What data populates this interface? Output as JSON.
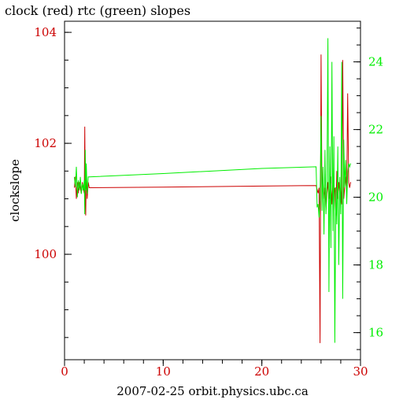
{
  "chart_data": {
    "type": "line",
    "title": "clock (red) rtc (green) slopes",
    "ylabel": "clockslope",
    "xlabel": "2007-02-25 orbit.physics.ubc.ca",
    "xlim": [
      0,
      30
    ],
    "ylim": [
      98.1,
      104.2
    ],
    "y2lim": [
      15.2,
      25.2
    ],
    "x_ticks": [
      0,
      10,
      20,
      30
    ],
    "y_ticks": [
      100,
      102,
      104
    ],
    "y2_ticks": [
      16,
      18,
      20,
      22,
      24
    ],
    "grid": false,
    "colors": {
      "clock": "#cc0000",
      "rtc": "#00ee00",
      "frame": "#000000"
    },
    "series": [
      {
        "name": "clock",
        "axis": "left",
        "x": [
          1.0,
          1.1,
          1.2,
          1.3,
          1.4,
          1.5,
          1.6,
          1.7,
          1.8,
          1.9,
          2.0,
          2.05,
          2.1,
          2.15,
          2.2,
          2.3,
          2.4,
          2.5,
          10,
          20,
          25.5,
          25.7,
          25.8,
          25.9,
          26.0,
          26.1,
          26.2,
          26.3,
          26.4,
          26.5,
          26.6,
          26.7,
          26.8,
          26.9,
          27.0,
          27.1,
          27.2,
          27.3,
          27.4,
          27.5,
          27.6,
          27.7,
          27.8,
          27.9,
          28.0,
          28.1,
          28.2,
          28.3,
          28.4,
          28.5,
          28.6,
          28.7,
          28.8,
          28.9,
          29.0
        ],
        "y": [
          101.2,
          101.4,
          101.0,
          101.3,
          101.1,
          101.3,
          101.2,
          101.1,
          101.3,
          101.2,
          101.1,
          102.3,
          101.0,
          100.7,
          101.5,
          101.0,
          101.3,
          101.2,
          101.21,
          101.23,
          101.24,
          101.1,
          101.2,
          98.4,
          103.6,
          101.0,
          101.3,
          101.0,
          101.2,
          100.8,
          101.1,
          101.3,
          101.0,
          101.2,
          101.4,
          100.9,
          101.3,
          101.1,
          101.2,
          100.7,
          101.5,
          101.0,
          101.3,
          101.1,
          101.2,
          100.9,
          103.5,
          101.0,
          101.2,
          101.4,
          101.1,
          102.9,
          101.3,
          101.2,
          101.3
        ]
      },
      {
        "name": "rtc",
        "axis": "right",
        "x": [
          1.0,
          1.1,
          1.2,
          1.3,
          1.4,
          1.5,
          1.6,
          1.7,
          1.8,
          1.9,
          2.0,
          2.05,
          2.1,
          2.15,
          2.2,
          2.3,
          2.4,
          2.5,
          10,
          20,
          25.5,
          25.6,
          25.7,
          25.8,
          25.9,
          26.0,
          26.1,
          26.2,
          26.3,
          26.4,
          26.5,
          26.6,
          26.7,
          26.8,
          26.9,
          27.0,
          27.1,
          27.2,
          27.3,
          27.4,
          27.5,
          27.6,
          27.7,
          27.8,
          27.9,
          28.0,
          28.1,
          28.2,
          28.3,
          28.4,
          28.5,
          28.6,
          28.7,
          28.8,
          28.9,
          29.0
        ],
        "y": [
          20.6,
          20.3,
          20.9,
          20.0,
          20.5,
          20.2,
          20.6,
          20.1,
          20.4,
          20.2,
          20.5,
          19.5,
          21.4,
          20.2,
          21.0,
          20.1,
          20.6,
          20.6,
          20.7,
          20.85,
          20.9,
          19.7,
          19.8,
          19.4,
          19.9,
          22.4,
          19.6,
          20.9,
          18.9,
          21.4,
          19.5,
          20.4,
          24.7,
          17.2,
          21.5,
          18.5,
          24.0,
          19.0,
          21.8,
          15.7,
          20.3,
          19.2,
          21.5,
          18.0,
          20.6,
          19.5,
          24.0,
          17.0,
          21.7,
          20.3,
          21.1,
          19.8,
          20.7,
          21.0,
          20.9,
          21.0
        ]
      }
    ]
  }
}
